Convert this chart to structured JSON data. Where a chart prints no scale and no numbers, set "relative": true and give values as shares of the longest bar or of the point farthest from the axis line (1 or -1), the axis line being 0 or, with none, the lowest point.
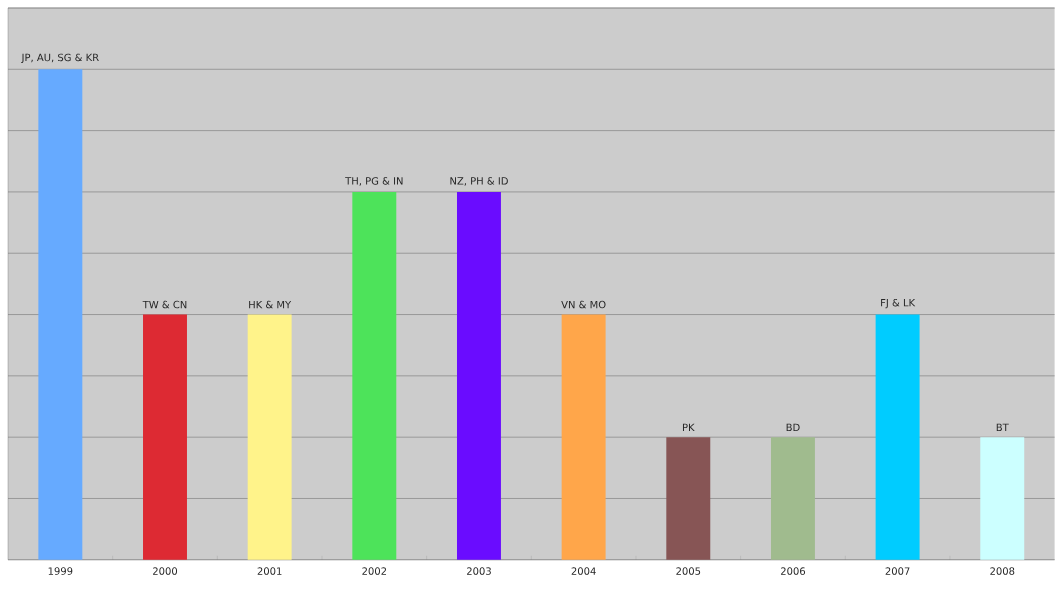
{
  "chart_data": {
    "type": "bar",
    "relative": true,
    "grid": "y",
    "categories": [
      "1999",
      "2000",
      "2001",
      "2002",
      "2003",
      "2004",
      "2005",
      "2006",
      "2007",
      "2008"
    ],
    "values": [
      1,
      0.5,
      0.5,
      0.75,
      0.75,
      0.5,
      0.25,
      0.25,
      0.5,
      0.25
    ],
    "colors": [
      "#66aaff",
      "#dd2a33",
      "#fff38a",
      "#4de35a",
      "#6a0cff",
      "#ffa64a",
      "#875555",
      "#a0bb8e",
      "#00ccff",
      "#ccffff"
    ],
    "annotations": [
      {
        "text": "JP, AU, SG & KR",
        "x": "1999",
        "y": 1
      },
      {
        "text": "TW & CN",
        "x": "2000",
        "y": 0.5
      },
      {
        "text": "HK & MY",
        "x": "2001",
        "y": 0.5
      },
      {
        "text": "TH, PG & IN",
        "x": "2002",
        "y": 0.75
      },
      {
        "text": "NZ, PH & ID",
        "x": "2003",
        "y": 0.75
      },
      {
        "text": "VN & MO",
        "x": "2004",
        "y": 0.5
      },
      {
        "text": "PK",
        "x": "2005",
        "y": 0.25
      },
      {
        "text": "BD",
        "x": "2006",
        "y": 0.25
      },
      {
        "text": "FJ & LK",
        "x": "2007",
        "y": 0.5
      },
      {
        "text": "BT",
        "x": "2008",
        "y": 0.25
      }
    ]
  }
}
